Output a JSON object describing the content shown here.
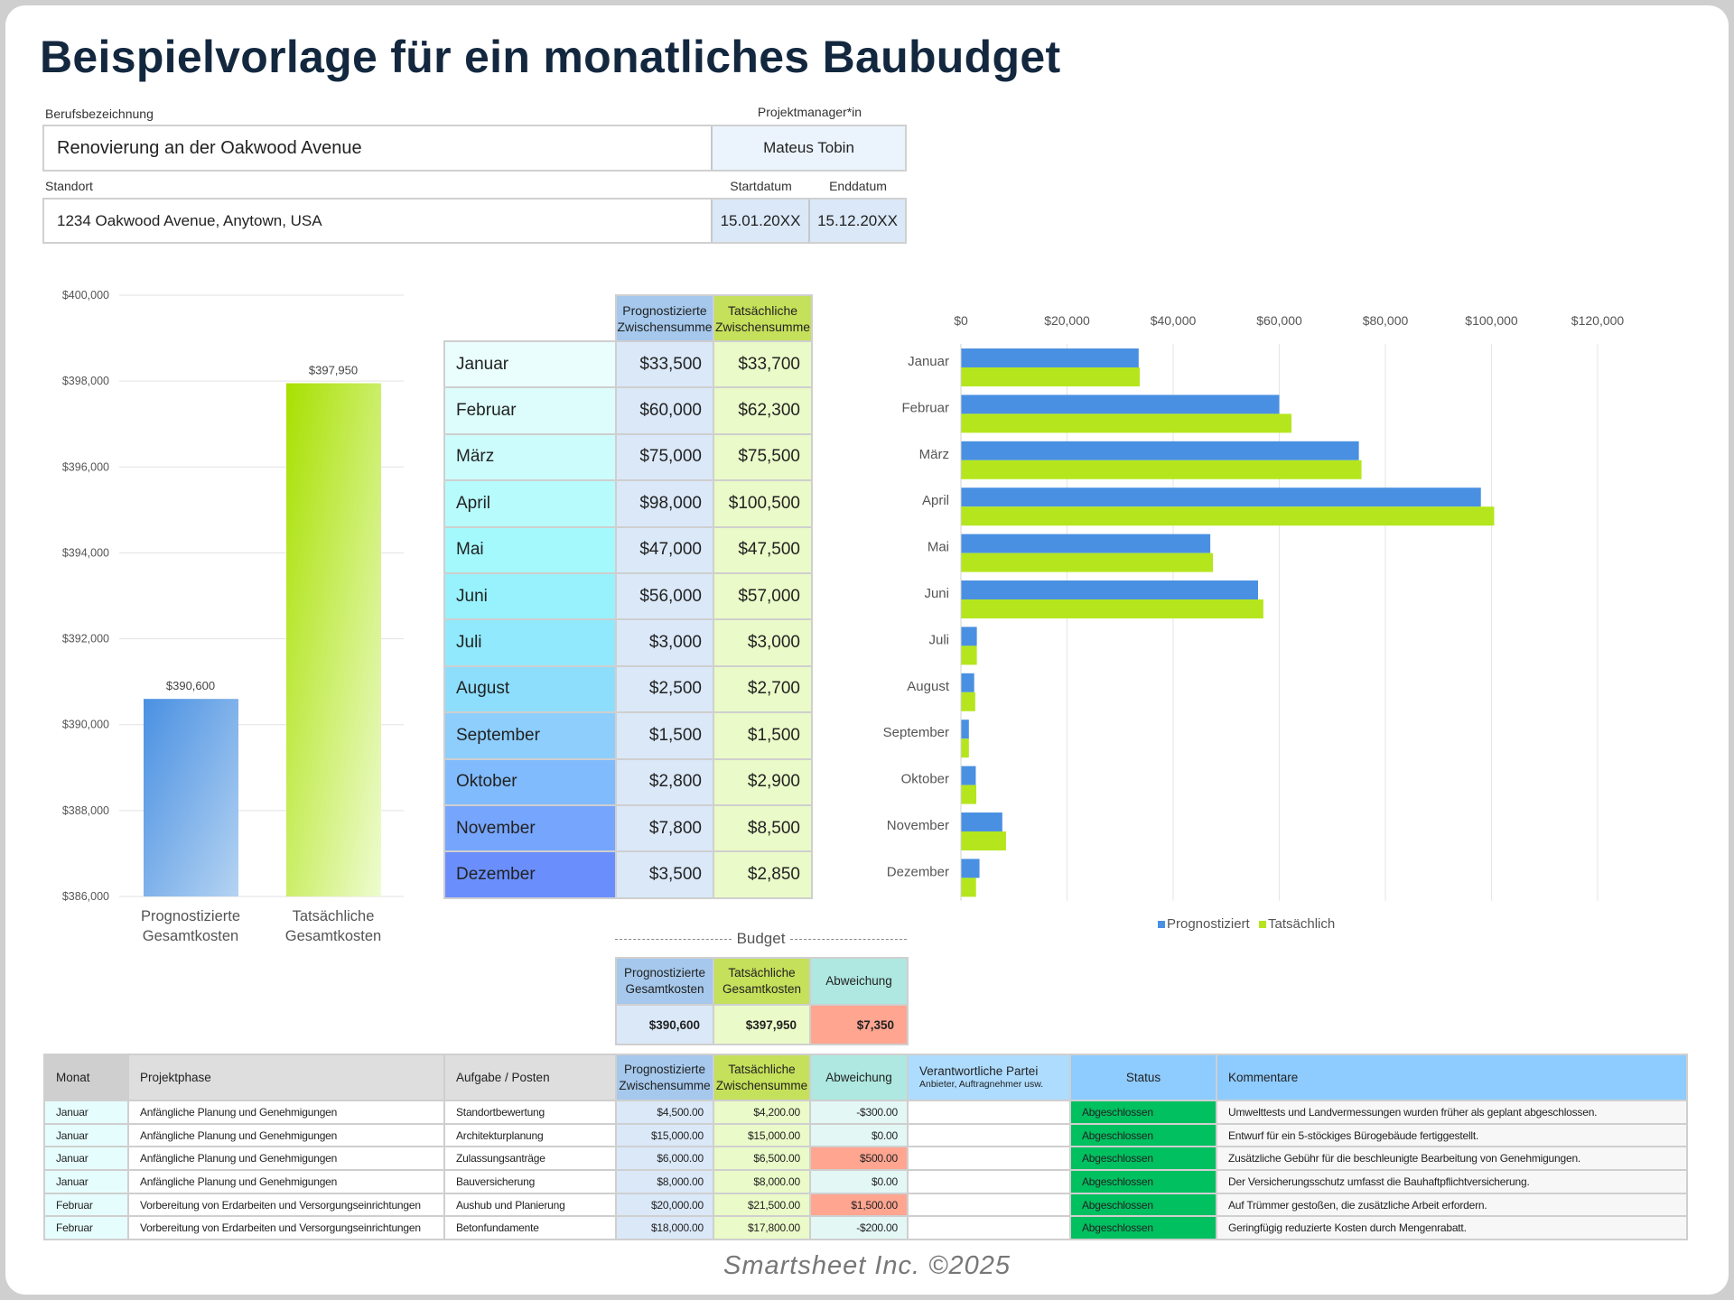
{
  "title": "Beispielvorlage für ein monatliches Baubudget",
  "project": {
    "job_title_label": "Berufsbezeichnung",
    "job_title": "Renovierung an der Oakwood Avenue",
    "manager_label": "Projektmanager*in",
    "manager": "Mateus Tobin",
    "location_label": "Standort",
    "location": "1234 Oakwood Avenue, Anytown, USA",
    "start_label": "Startdatum",
    "start": "15.01.20XX",
    "end_label": "Enddatum",
    "end": "15.12.20XX"
  },
  "colors": {
    "forecast": "#4a90e2",
    "actual": "#b5e61d",
    "forecast_header": "#a5c8ec",
    "actual_header": "#c5e05a",
    "variance_header": "#aee8e0",
    "over_budget": "#ffa590",
    "status_done": "#00c060",
    "month_col": [
      "#eafffd",
      "#dcfdfb",
      "#cdfcfc",
      "#b7fbfc",
      "#a4f9fd",
      "#97f2fd",
      "#90e9fd",
      "#8ddefd",
      "#8dcefd",
      "#80bbfd",
      "#76a5fd",
      "#6a8ffd"
    ]
  },
  "monthly": {
    "header_forecast": "Prognostizierte Zwischensumme",
    "header_actual": "Tatsächliche Zwischensumme",
    "rows": [
      {
        "month": "Januar",
        "forecast": "$33,500",
        "actual": "$33,700"
      },
      {
        "month": "Februar",
        "forecast": "$60,000",
        "actual": "$62,300"
      },
      {
        "month": "März",
        "forecast": "$75,000",
        "actual": "$75,500"
      },
      {
        "month": "April",
        "forecast": "$98,000",
        "actual": "$100,500"
      },
      {
        "month": "Mai",
        "forecast": "$47,000",
        "actual": "$47,500"
      },
      {
        "month": "Juni",
        "forecast": "$56,000",
        "actual": "$57,000"
      },
      {
        "month": "Juli",
        "forecast": "$3,000",
        "actual": "$3,000"
      },
      {
        "month": "August",
        "forecast": "$2,500",
        "actual": "$2,700"
      },
      {
        "month": "September",
        "forecast": "$1,500",
        "actual": "$1,500"
      },
      {
        "month": "Oktober",
        "forecast": "$2,800",
        "actual": "$2,900"
      },
      {
        "month": "November",
        "forecast": "$7,800",
        "actual": "$8,500"
      },
      {
        "month": "Dezember",
        "forecast": "$3,500",
        "actual": "$2,850"
      }
    ]
  },
  "budget": {
    "label": "Budget",
    "header_forecast": "Prognostizierte Gesamtkosten",
    "header_actual": "Tatsächliche Gesamtkosten",
    "header_variance": "Abweichung",
    "forecast": "$390,600",
    "actual": "$397,950",
    "variance": "$7,350"
  },
  "chart_data": [
    {
      "type": "bar",
      "orientation": "vertical",
      "categories": [
        "Prognostizierte Gesamtkosten",
        "Tatsächliche Gesamtkosten"
      ],
      "values": [
        390600,
        397950
      ],
      "data_labels": [
        "$390,600",
        "$397,950"
      ],
      "ylim": [
        386000,
        400000
      ],
      "yticks": [
        "$386,000",
        "$388,000",
        "$390,000",
        "$392,000",
        "$394,000",
        "$396,000",
        "$398,000",
        "$400,000"
      ],
      "grid": true
    },
    {
      "type": "bar",
      "orientation": "horizontal",
      "categories": [
        "Januar",
        "Februar",
        "März",
        "April",
        "Mai",
        "Juni",
        "Juli",
        "August",
        "September",
        "Oktober",
        "November",
        "Dezember"
      ],
      "series": [
        {
          "name": "Prognostiziert",
          "values": [
            33500,
            60000,
            75000,
            98000,
            47000,
            56000,
            3000,
            2500,
            1500,
            2800,
            7800,
            3500
          ]
        },
        {
          "name": "Tatsächlich",
          "values": [
            33700,
            62300,
            75500,
            100500,
            47500,
            57000,
            3000,
            2700,
            1500,
            2900,
            8500,
            2850
          ]
        }
      ],
      "xlim": [
        0,
        120000
      ],
      "xticks": [
        "$0",
        "$20,000",
        "$40,000",
        "$60,000",
        "$80,000",
        "$100,000",
        "$120,000"
      ],
      "grid": true,
      "legend": "bottom"
    }
  ],
  "details": {
    "headers": {
      "month": "Monat",
      "phase": "Projektphase",
      "task": "Aufgabe / Posten",
      "forecast": "Prognostizierte Zwischensumme",
      "actual": "Tatsächliche Zwischensumme",
      "variance": "Abweichung",
      "party": "Verantwortliche Partei",
      "party_sub": "Anbieter, Auftragnehmer usw.",
      "status": "Status",
      "comments": "Kommentare"
    },
    "rows": [
      {
        "month": "Januar",
        "phase": "Anfängliche Planung und Genehmigungen",
        "task": "Standortbewertung",
        "forecast": "$4,500.00",
        "actual": "$4,200.00",
        "variance": "-$300.00",
        "over": false,
        "party": "",
        "status": "Abgeschlossen",
        "comment": "Umwelttests und Landvermessungen wurden früher als geplant abgeschlossen."
      },
      {
        "month": "Januar",
        "phase": "Anfängliche Planung und Genehmigungen",
        "task": "Architekturplanung",
        "forecast": "$15,000.00",
        "actual": "$15,000.00",
        "variance": "$0.00",
        "over": false,
        "party": "",
        "status": "Abgeschlossen",
        "comment": "Entwurf für ein 5-stöckiges Bürogebäude fertiggestellt."
      },
      {
        "month": "Januar",
        "phase": "Anfängliche Planung und Genehmigungen",
        "task": "Zulassungsanträge",
        "forecast": "$6,000.00",
        "actual": "$6,500.00",
        "variance": "$500.00",
        "over": true,
        "party": "",
        "status": "Abgeschlossen",
        "comment": "Zusätzliche Gebühr für die beschleunigte Bearbeitung von Genehmigungen."
      },
      {
        "month": "Januar",
        "phase": "Anfängliche Planung und Genehmigungen",
        "task": "Bauversicherung",
        "forecast": "$8,000.00",
        "actual": "$8,000.00",
        "variance": "$0.00",
        "over": false,
        "party": "",
        "status": "Abgeschlossen",
        "comment": "Der Versicherungsschutz umfasst die Bauhaftpflichtversicherung."
      },
      {
        "month": "Februar",
        "phase": "Vorbereitung von Erdarbeiten und Versorgungseinrichtungen",
        "task": "Aushub und Planierung",
        "forecast": "$20,000.00",
        "actual": "$21,500.00",
        "variance": "$1,500.00",
        "over": true,
        "party": "",
        "status": "Abgeschlossen",
        "comment": "Auf Trümmer gestoßen, die zusätzliche Arbeit erfordern."
      },
      {
        "month": "Februar",
        "phase": "Vorbereitung von Erdarbeiten und Versorgungseinrichtungen",
        "task": "Betonfundamente",
        "forecast": "$18,000.00",
        "actual": "$17,800.00",
        "variance": "-$200.00",
        "over": false,
        "party": "",
        "status": "Abgeschlossen",
        "comment": "Geringfügig reduzierte Kosten durch Mengenrabatt."
      }
    ]
  },
  "footer": "Smartsheet Inc. ©2025"
}
